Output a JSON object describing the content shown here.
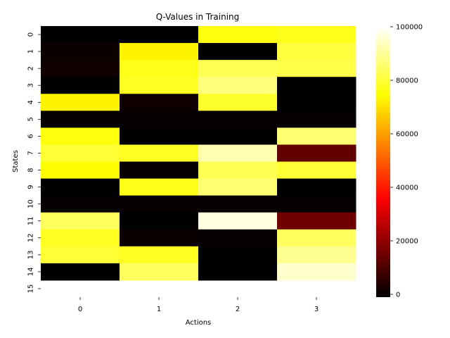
{
  "chart_data": {
    "type": "heatmap",
    "title": "Q-Values in Training",
    "xlabel": "Actions",
    "ylabel": "States",
    "x_categories": [
      "0",
      "1",
      "2",
      "3"
    ],
    "y_categories": [
      "0",
      "1",
      "2",
      "3",
      "4",
      "5",
      "6",
      "7",
      "8",
      "9",
      "10",
      "11",
      "12",
      "13",
      "14",
      "15"
    ],
    "values": [
      [
        0,
        0,
        76000,
        77000
      ],
      [
        1500,
        73000,
        500,
        81000
      ],
      [
        2500,
        77000,
        83000,
        82000
      ],
      [
        500,
        78000,
        87000,
        0
      ],
      [
        73000,
        2000,
        79000,
        0
      ],
      [
        1000,
        1000,
        1000,
        1000
      ],
      [
        76000,
        500,
        500,
        86000
      ],
      [
        80000,
        78000,
        92000,
        14000
      ],
      [
        75000,
        1000,
        83000,
        80000
      ],
      [
        0,
        77000,
        86000,
        0
      ],
      [
        1000,
        1000,
        1000,
        1000
      ],
      [
        84000,
        0,
        97000,
        16000
      ],
      [
        78000,
        1500,
        1000,
        84000
      ],
      [
        80000,
        78000,
        0,
        89000
      ],
      [
        0,
        84000,
        0,
        95000
      ],
      [
        null,
        null,
        null,
        null
      ]
    ],
    "colormap": "hot",
    "colorbar": {
      "min": 0,
      "max": 100000,
      "ticks": [
        "0",
        "20000",
        "40000",
        "60000",
        "80000",
        "100000"
      ]
    }
  }
}
